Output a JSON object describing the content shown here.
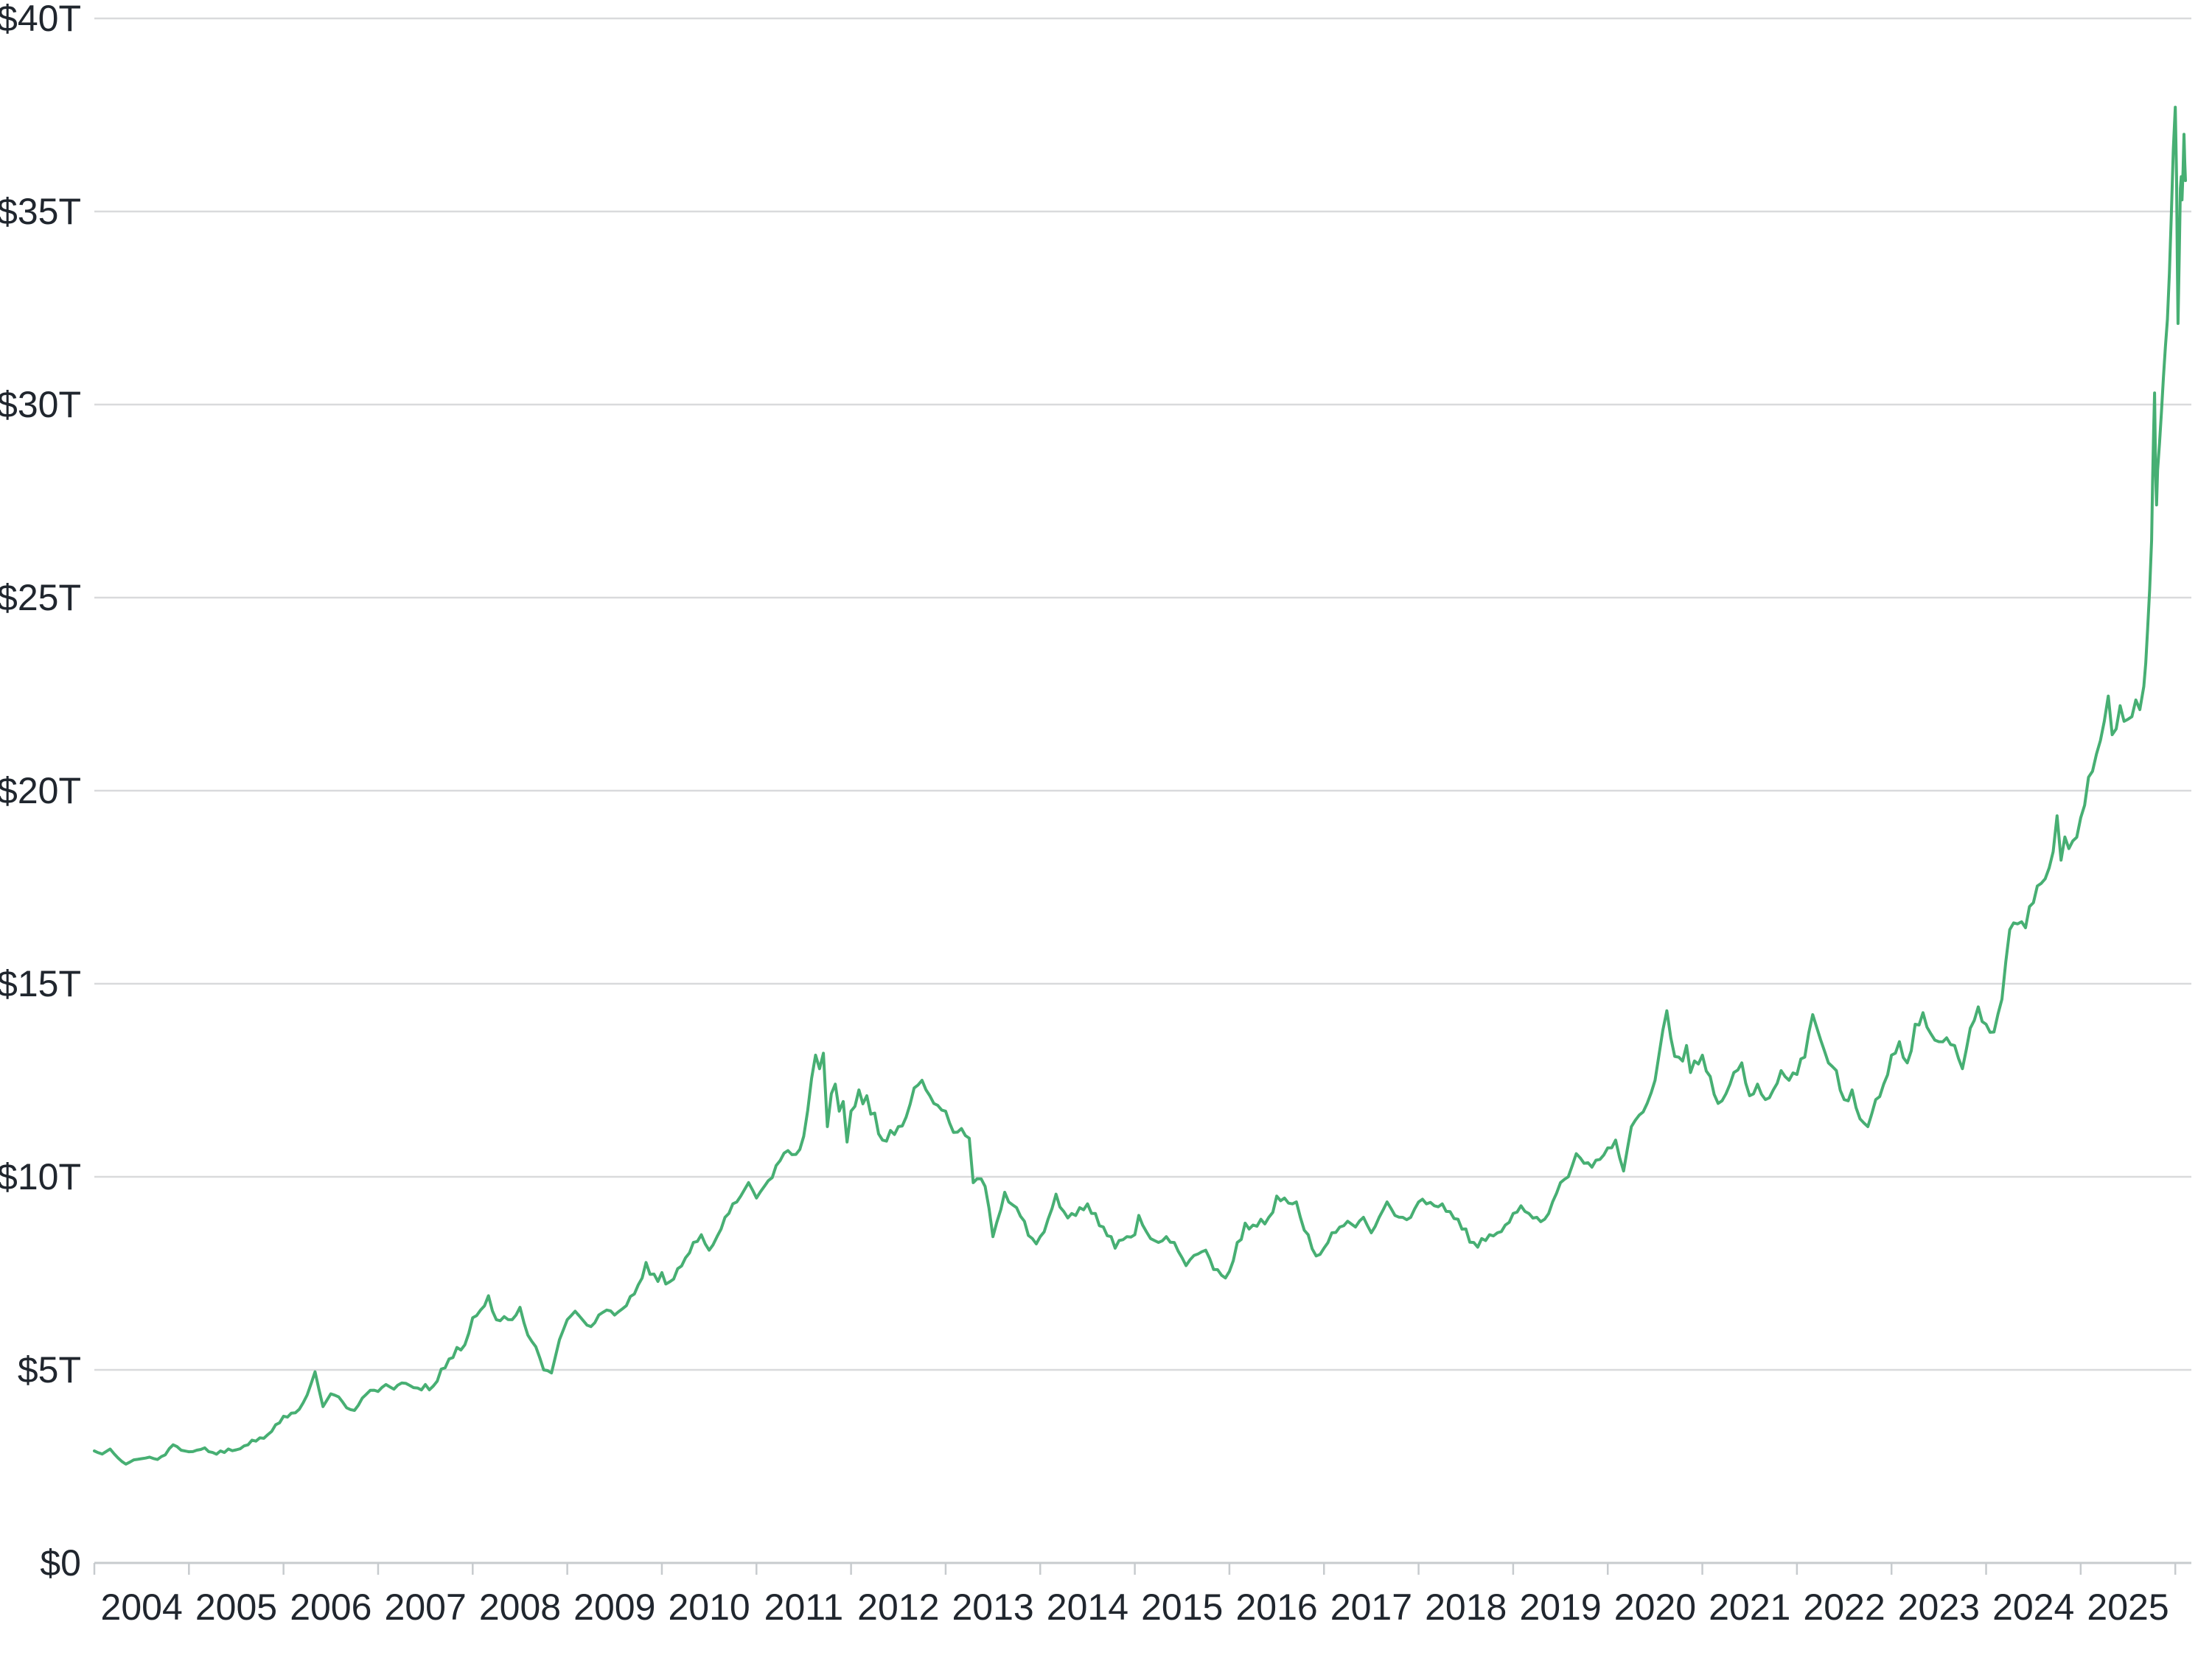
{
  "chart_data": {
    "type": "line",
    "title": "",
    "grid": "horizontal",
    "legend": "none",
    "line_color": "#47AF73",
    "line_width": 4,
    "axis_color": "#c7cbce",
    "gridline_color": "#d9dadc",
    "label_color": "#20262e",
    "ylim": [
      0,
      40
    ],
    "xlim": [
      2004,
      2026.17
    ],
    "y_ticks": [
      {
        "value": 0,
        "label": "$0"
      },
      {
        "value": 5,
        "label": "$5T"
      },
      {
        "value": 10,
        "label": "$10T"
      },
      {
        "value": 15,
        "label": "$15T"
      },
      {
        "value": 20,
        "label": "$20T"
      },
      {
        "value": 25,
        "label": "$25T"
      },
      {
        "value": 30,
        "label": "$30T"
      },
      {
        "value": 35,
        "label": "$35T"
      },
      {
        "value": 40,
        "label": "$40T"
      }
    ],
    "x_tick_years": [
      2004,
      2005,
      2006,
      2007,
      2008,
      2009,
      2010,
      2011,
      2012,
      2013,
      2014,
      2015,
      2016,
      2017,
      2018,
      2019,
      2020,
      2021,
      2022,
      2023,
      2024,
      2025,
      2026
    ],
    "x_labels": [
      "2004",
      "2005",
      "2006",
      "2007",
      "2008",
      "2009",
      "2010",
      "2011",
      "2012",
      "2013",
      "2014",
      "2015",
      "2016",
      "2017",
      "2018",
      "2019",
      "2020",
      "2021",
      "2022",
      "2023",
      "2024",
      "2025"
    ],
    "unit": "USD trillions",
    "noise_pct": 1.6,
    "points": [
      [
        2004.0,
        2.9
      ],
      [
        2004.083,
        2.82
      ],
      [
        2004.167,
        2.95
      ],
      [
        2004.25,
        2.72
      ],
      [
        2004.333,
        2.56
      ],
      [
        2004.417,
        2.67
      ],
      [
        2004.5,
        2.7
      ],
      [
        2004.583,
        2.74
      ],
      [
        2004.667,
        2.68
      ],
      [
        2004.75,
        2.8
      ],
      [
        2004.833,
        3.06
      ],
      [
        2004.917,
        2.92
      ],
      [
        2005.0,
        2.88
      ],
      [
        2005.083,
        2.92
      ],
      [
        2005.167,
        2.98
      ],
      [
        2005.25,
        2.86
      ],
      [
        2005.333,
        2.9
      ],
      [
        2005.417,
        2.95
      ],
      [
        2005.5,
        2.93
      ],
      [
        2005.583,
        3.03
      ],
      [
        2005.667,
        3.18
      ],
      [
        2005.75,
        3.24
      ],
      [
        2005.833,
        3.32
      ],
      [
        2005.917,
        3.58
      ],
      [
        2006.0,
        3.8
      ],
      [
        2006.083,
        3.88
      ],
      [
        2006.167,
        3.98
      ],
      [
        2006.25,
        4.35
      ],
      [
        2006.333,
        4.95
      ],
      [
        2006.417,
        4.05
      ],
      [
        2006.5,
        4.38
      ],
      [
        2006.583,
        4.3
      ],
      [
        2006.667,
        4.02
      ],
      [
        2006.75,
        3.95
      ],
      [
        2006.833,
        4.27
      ],
      [
        2006.917,
        4.47
      ],
      [
        2007.0,
        4.44
      ],
      [
        2007.083,
        4.62
      ],
      [
        2007.167,
        4.5
      ],
      [
        2007.25,
        4.66
      ],
      [
        2007.333,
        4.6
      ],
      [
        2007.417,
        4.53
      ],
      [
        2007.5,
        4.62
      ],
      [
        2007.583,
        4.58
      ],
      [
        2007.667,
        5.02
      ],
      [
        2007.75,
        5.28
      ],
      [
        2007.833,
        5.58
      ],
      [
        2007.917,
        5.65
      ],
      [
        2008.0,
        6.35
      ],
      [
        2008.083,
        6.55
      ],
      [
        2008.167,
        6.92
      ],
      [
        2008.25,
        6.3
      ],
      [
        2008.333,
        6.38
      ],
      [
        2008.417,
        6.3
      ],
      [
        2008.5,
        6.62
      ],
      [
        2008.583,
        5.9
      ],
      [
        2008.667,
        5.6
      ],
      [
        2008.75,
        5.0
      ],
      [
        2008.833,
        4.92
      ],
      [
        2008.917,
        5.78
      ],
      [
        2009.0,
        6.3
      ],
      [
        2009.083,
        6.52
      ],
      [
        2009.167,
        6.28
      ],
      [
        2009.25,
        6.12
      ],
      [
        2009.333,
        6.42
      ],
      [
        2009.417,
        6.55
      ],
      [
        2009.5,
        6.42
      ],
      [
        2009.583,
        6.58
      ],
      [
        2009.667,
        6.9
      ],
      [
        2009.75,
        7.2
      ],
      [
        2009.833,
        7.78
      ],
      [
        2009.917,
        7.48
      ],
      [
        2010.0,
        7.52
      ],
      [
        2010.083,
        7.28
      ],
      [
        2010.167,
        7.62
      ],
      [
        2010.25,
        7.9
      ],
      [
        2010.333,
        8.3
      ],
      [
        2010.417,
        8.5
      ],
      [
        2010.5,
        8.1
      ],
      [
        2010.583,
        8.45
      ],
      [
        2010.667,
        8.95
      ],
      [
        2010.75,
        9.3
      ],
      [
        2010.833,
        9.5
      ],
      [
        2010.917,
        9.85
      ],
      [
        2011.0,
        9.45
      ],
      [
        2011.083,
        9.75
      ],
      [
        2011.167,
        9.98
      ],
      [
        2011.25,
        10.42
      ],
      [
        2011.333,
        10.68
      ],
      [
        2011.417,
        10.58
      ],
      [
        2011.5,
        11.05
      ],
      [
        2011.583,
        12.55
      ],
      [
        2011.625,
        13.15
      ],
      [
        2011.667,
        12.8
      ],
      [
        2011.708,
        13.2
      ],
      [
        2011.75,
        11.3
      ],
      [
        2011.792,
        12.15
      ],
      [
        2011.833,
        12.4
      ],
      [
        2011.875,
        11.7
      ],
      [
        2011.917,
        11.95
      ],
      [
        2011.958,
        10.9
      ],
      [
        2012.0,
        11.7
      ],
      [
        2012.083,
        12.25
      ],
      [
        2012.167,
        12.1
      ],
      [
        2012.25,
        11.65
      ],
      [
        2012.333,
        10.95
      ],
      [
        2012.417,
        11.2
      ],
      [
        2012.5,
        11.3
      ],
      [
        2012.583,
        11.55
      ],
      [
        2012.667,
        12.3
      ],
      [
        2012.75,
        12.5
      ],
      [
        2012.833,
        12.1
      ],
      [
        2012.917,
        11.85
      ],
      [
        2013.0,
        11.7
      ],
      [
        2013.083,
        11.15
      ],
      [
        2013.167,
        11.25
      ],
      [
        2013.25,
        11.0
      ],
      [
        2013.292,
        9.85
      ],
      [
        2013.333,
        9.95
      ],
      [
        2013.417,
        9.75
      ],
      [
        2013.5,
        8.45
      ],
      [
        2013.583,
        9.15
      ],
      [
        2013.625,
        9.6
      ],
      [
        2013.667,
        9.35
      ],
      [
        2013.75,
        9.2
      ],
      [
        2013.833,
        8.85
      ],
      [
        2013.917,
        8.4
      ],
      [
        2014.0,
        8.45
      ],
      [
        2014.083,
        8.9
      ],
      [
        2014.167,
        9.55
      ],
      [
        2014.25,
        9.1
      ],
      [
        2014.333,
        9.05
      ],
      [
        2014.417,
        9.2
      ],
      [
        2014.5,
        9.3
      ],
      [
        2014.583,
        9.05
      ],
      [
        2014.667,
        8.7
      ],
      [
        2014.75,
        8.45
      ],
      [
        2014.792,
        8.15
      ],
      [
        2014.833,
        8.35
      ],
      [
        2014.917,
        8.45
      ],
      [
        2015.0,
        8.5
      ],
      [
        2015.042,
        9.0
      ],
      [
        2015.083,
        8.75
      ],
      [
        2015.167,
        8.4
      ],
      [
        2015.25,
        8.3
      ],
      [
        2015.333,
        8.45
      ],
      [
        2015.417,
        8.3
      ],
      [
        2015.5,
        7.9
      ],
      [
        2015.542,
        7.7
      ],
      [
        2015.583,
        7.85
      ],
      [
        2015.667,
        8.0
      ],
      [
        2015.75,
        8.1
      ],
      [
        2015.833,
        7.6
      ],
      [
        2015.917,
        7.45
      ],
      [
        2015.958,
        7.38
      ],
      [
        2016.0,
        7.55
      ],
      [
        2016.083,
        8.3
      ],
      [
        2016.167,
        8.8
      ],
      [
        2016.25,
        8.75
      ],
      [
        2016.333,
        8.9
      ],
      [
        2016.417,
        8.95
      ],
      [
        2016.5,
        9.5
      ],
      [
        2016.583,
        9.45
      ],
      [
        2016.667,
        9.3
      ],
      [
        2016.708,
        9.35
      ],
      [
        2016.75,
        8.95
      ],
      [
        2016.833,
        8.5
      ],
      [
        2016.917,
        7.95
      ],
      [
        2017.0,
        8.15
      ],
      [
        2017.083,
        8.55
      ],
      [
        2017.167,
        8.7
      ],
      [
        2017.25,
        8.85
      ],
      [
        2017.333,
        8.7
      ],
      [
        2017.417,
        8.95
      ],
      [
        2017.5,
        8.55
      ],
      [
        2017.583,
        8.95
      ],
      [
        2017.667,
        9.35
      ],
      [
        2017.75,
        9.0
      ],
      [
        2017.833,
        8.95
      ],
      [
        2017.917,
        8.95
      ],
      [
        2018.0,
        9.35
      ],
      [
        2018.083,
        9.3
      ],
      [
        2018.167,
        9.25
      ],
      [
        2018.25,
        9.3
      ],
      [
        2018.333,
        9.1
      ],
      [
        2018.417,
        8.9
      ],
      [
        2018.5,
        8.65
      ],
      [
        2018.583,
        8.3
      ],
      [
        2018.667,
        8.4
      ],
      [
        2018.75,
        8.5
      ],
      [
        2018.833,
        8.55
      ],
      [
        2018.917,
        8.75
      ],
      [
        2019.0,
        9.05
      ],
      [
        2019.083,
        9.25
      ],
      [
        2019.167,
        9.05
      ],
      [
        2019.25,
        8.95
      ],
      [
        2019.333,
        8.9
      ],
      [
        2019.417,
        9.35
      ],
      [
        2019.5,
        9.85
      ],
      [
        2019.583,
        10.0
      ],
      [
        2019.667,
        10.6
      ],
      [
        2019.75,
        10.35
      ],
      [
        2019.833,
        10.25
      ],
      [
        2019.917,
        10.45
      ],
      [
        2020.0,
        10.75
      ],
      [
        2020.083,
        10.95
      ],
      [
        2020.167,
        10.15
      ],
      [
        2020.25,
        11.3
      ],
      [
        2020.333,
        11.6
      ],
      [
        2020.417,
        11.9
      ],
      [
        2020.5,
        12.5
      ],
      [
        2020.583,
        13.8
      ],
      [
        2020.625,
        14.3
      ],
      [
        2020.667,
        13.6
      ],
      [
        2020.75,
        13.1
      ],
      [
        2020.833,
        13.4
      ],
      [
        2020.875,
        12.7
      ],
      [
        2020.917,
        13.0
      ],
      [
        2021.0,
        13.15
      ],
      [
        2021.083,
        12.6
      ],
      [
        2021.167,
        11.9
      ],
      [
        2021.25,
        12.15
      ],
      [
        2021.333,
        12.7
      ],
      [
        2021.417,
        12.95
      ],
      [
        2021.5,
        12.1
      ],
      [
        2021.583,
        12.4
      ],
      [
        2021.667,
        12.0
      ],
      [
        2021.75,
        12.25
      ],
      [
        2021.833,
        12.75
      ],
      [
        2021.917,
        12.5
      ],
      [
        2022.0,
        12.65
      ],
      [
        2022.083,
        13.1
      ],
      [
        2022.167,
        14.2
      ],
      [
        2022.25,
        13.55
      ],
      [
        2022.333,
        12.95
      ],
      [
        2022.417,
        12.75
      ],
      [
        2022.5,
        12.0
      ],
      [
        2022.583,
        12.25
      ],
      [
        2022.667,
        11.5
      ],
      [
        2022.75,
        11.3
      ],
      [
        2022.833,
        12.0
      ],
      [
        2022.917,
        12.4
      ],
      [
        2023.0,
        13.15
      ],
      [
        2023.083,
        13.5
      ],
      [
        2023.167,
        12.95
      ],
      [
        2023.25,
        13.95
      ],
      [
        2023.333,
        14.25
      ],
      [
        2023.417,
        13.7
      ],
      [
        2023.5,
        13.5
      ],
      [
        2023.583,
        13.6
      ],
      [
        2023.667,
        13.4
      ],
      [
        2023.75,
        12.8
      ],
      [
        2023.833,
        13.85
      ],
      [
        2023.917,
        14.4
      ],
      [
        2024.0,
        13.95
      ],
      [
        2024.083,
        13.75
      ],
      [
        2024.167,
        14.6
      ],
      [
        2024.25,
        16.4
      ],
      [
        2024.333,
        16.55
      ],
      [
        2024.417,
        16.45
      ],
      [
        2024.5,
        17.1
      ],
      [
        2024.583,
        17.6
      ],
      [
        2024.667,
        18.0
      ],
      [
        2024.75,
        19.35
      ],
      [
        2024.792,
        18.2
      ],
      [
        2024.833,
        18.8
      ],
      [
        2024.875,
        18.5
      ],
      [
        2024.917,
        18.7
      ],
      [
        2025.0,
        19.3
      ],
      [
        2025.083,
        20.35
      ],
      [
        2025.167,
        20.95
      ],
      [
        2025.25,
        21.8
      ],
      [
        2025.292,
        22.45
      ],
      [
        2025.333,
        21.45
      ],
      [
        2025.417,
        22.2
      ],
      [
        2025.5,
        21.85
      ],
      [
        2025.583,
        22.35
      ],
      [
        2025.625,
        22.1
      ],
      [
        2025.667,
        22.7
      ],
      [
        2025.688,
        23.3
      ],
      [
        2025.708,
        24.2
      ],
      [
        2025.729,
        25.2
      ],
      [
        2025.75,
        26.5
      ],
      [
        2025.76,
        28.0
      ],
      [
        2025.771,
        29.3
      ],
      [
        2025.781,
        30.3
      ],
      [
        2025.792,
        28.2
      ],
      [
        2025.802,
        27.4
      ],
      [
        2025.813,
        28.3
      ],
      [
        2025.833,
        29.0
      ],
      [
        2025.854,
        29.8
      ],
      [
        2025.875,
        30.7
      ],
      [
        2025.896,
        31.5
      ],
      [
        2025.917,
        32.2
      ],
      [
        2025.938,
        33.4
      ],
      [
        2025.958,
        34.9
      ],
      [
        2025.979,
        36.6
      ],
      [
        2026.0,
        37.7
      ],
      [
        2026.013,
        35.9
      ],
      [
        2026.021,
        33.8
      ],
      [
        2026.029,
        32.1
      ],
      [
        2026.042,
        33.9
      ],
      [
        2026.054,
        35.6
      ],
      [
        2026.063,
        35.9
      ],
      [
        2026.071,
        35.3
      ],
      [
        2026.083,
        36.1
      ],
      [
        2026.092,
        37.0
      ],
      [
        2026.1,
        36.3
      ],
      [
        2026.108,
        35.8
      ]
    ]
  }
}
